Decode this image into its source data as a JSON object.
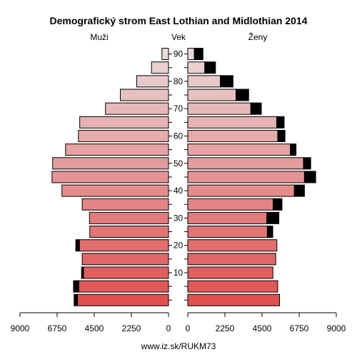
{
  "chart_data": {
    "type": "bar",
    "title": "Demografický strom East Lothian and Midlothian 2014",
    "left_label": "Muži",
    "center_label": "Vek",
    "right_label": "Ženy",
    "source": "www.iz.sk/RUKM73",
    "age_groups": [
      "0-4",
      "5-9",
      "10-14",
      "15-19",
      "20-24",
      "25-29",
      "30-34",
      "35-39",
      "40-44",
      "45-49",
      "50-54",
      "55-59",
      "60-64",
      "65-69",
      "70-74",
      "75-79",
      "80-84",
      "85-89",
      "90+"
    ],
    "age_tick_labels": [
      "10",
      "20",
      "30",
      "40",
      "50",
      "60",
      "70",
      "80",
      "90"
    ],
    "value_ticks": [
      "9000",
      "6750",
      "4500",
      "2250",
      "0",
      "2250",
      "4500",
      "6750",
      "9000"
    ],
    "xlim": [
      0,
      9000
    ],
    "series": [
      {
        "name": "Muži",
        "base_values": [
          5520,
          5440,
          5150,
          5230,
          5400,
          4770,
          4790,
          5230,
          6460,
          7060,
          7020,
          6240,
          5460,
          5380,
          3820,
          2920,
          1930,
          1030,
          400
        ],
        "surplus_values": [
          200,
          320,
          120,
          0,
          220,
          0,
          0,
          0,
          0,
          0,
          0,
          0,
          0,
          0,
          0,
          0,
          0,
          0,
          0
        ]
      },
      {
        "name": "Ženy",
        "base_values": [
          5560,
          5450,
          5160,
          5330,
          5400,
          4820,
          4790,
          5170,
          6460,
          7070,
          7010,
          6220,
          5450,
          5390,
          3820,
          2920,
          1970,
          1030,
          400
        ],
        "surplus_values": [
          0,
          0,
          0,
          0,
          0,
          330,
          730,
          540,
          610,
          680,
          440,
          340,
          440,
          450,
          640,
          770,
          770,
          650,
          520
        ]
      }
    ],
    "colors": {
      "male_base": "#e05050",
      "male_top": "#e8d8d8",
      "female_base": "#e05050",
      "female_top": "#e8d8d8",
      "surplus": "#000000",
      "stroke": "#000000"
    }
  }
}
